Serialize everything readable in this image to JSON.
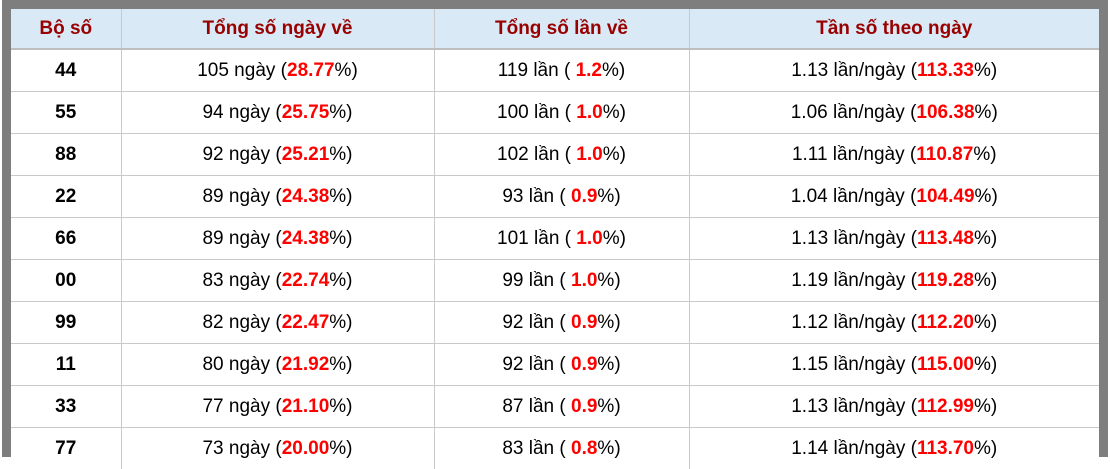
{
  "theme": {
    "frame_color": "#7e7e7e",
    "header_bg": "#d9eaf6",
    "header_text_color": "#990000",
    "body_text_color": "#000000",
    "highlight_color": "#ff0000",
    "divider_color": "#c9c9c9"
  },
  "table": {
    "headers": [
      "Bộ số",
      "Tổng số ngày về",
      "Tổng số lần về",
      "Tần số theo ngày"
    ],
    "rows": [
      {
        "pair": "44",
        "days_pre": "105 ngày (",
        "days_hl": "28.77",
        "days_post": "%)",
        "times_pre": "119 lần ( ",
        "times_hl": "1.2",
        "times_post": "%)",
        "freq_pre": "1.13 lần/ngày (",
        "freq_hl": "113.33",
        "freq_post": "%)"
      },
      {
        "pair": "55",
        "days_pre": "94 ngày (",
        "days_hl": "25.75",
        "days_post": "%)",
        "times_pre": "100 lần ( ",
        "times_hl": "1.0",
        "times_post": "%)",
        "freq_pre": "1.06 lần/ngày (",
        "freq_hl": "106.38",
        "freq_post": "%)"
      },
      {
        "pair": "88",
        "days_pre": "92 ngày (",
        "days_hl": "25.21",
        "days_post": "%)",
        "times_pre": "102 lần ( ",
        "times_hl": "1.0",
        "times_post": "%)",
        "freq_pre": "1.11 lần/ngày (",
        "freq_hl": "110.87",
        "freq_post": "%)"
      },
      {
        "pair": "22",
        "days_pre": "89 ngày (",
        "days_hl": "24.38",
        "days_post": "%)",
        "times_pre": "93 lần ( ",
        "times_hl": "0.9",
        "times_post": "%)",
        "freq_pre": "1.04 lần/ngày (",
        "freq_hl": "104.49",
        "freq_post": "%)"
      },
      {
        "pair": "66",
        "days_pre": "89 ngày (",
        "days_hl": "24.38",
        "days_post": "%)",
        "times_pre": "101 lần ( ",
        "times_hl": "1.0",
        "times_post": "%)",
        "freq_pre": "1.13 lần/ngày (",
        "freq_hl": "113.48",
        "freq_post": "%)"
      },
      {
        "pair": "00",
        "days_pre": "83 ngày (",
        "days_hl": "22.74",
        "days_post": "%)",
        "times_pre": "99 lần ( ",
        "times_hl": "1.0",
        "times_post": "%)",
        "freq_pre": "1.19 lần/ngày (",
        "freq_hl": "119.28",
        "freq_post": "%)"
      },
      {
        "pair": "99",
        "days_pre": "82 ngày (",
        "days_hl": "22.47",
        "days_post": "%)",
        "times_pre": "92 lần ( ",
        "times_hl": "0.9",
        "times_post": "%)",
        "freq_pre": "1.12 lần/ngày (",
        "freq_hl": "112.20",
        "freq_post": "%)"
      },
      {
        "pair": "11",
        "days_pre": "80 ngày (",
        "days_hl": "21.92",
        "days_post": "%)",
        "times_pre": "92 lần ( ",
        "times_hl": "0.9",
        "times_post": "%)",
        "freq_pre": "1.15 lần/ngày (",
        "freq_hl": "115.00",
        "freq_post": "%)"
      },
      {
        "pair": "33",
        "days_pre": "77 ngày (",
        "days_hl": "21.10",
        "days_post": "%)",
        "times_pre": "87 lần ( ",
        "times_hl": "0.9",
        "times_post": "%)",
        "freq_pre": "1.13 lần/ngày (",
        "freq_hl": "112.99",
        "freq_post": "%)"
      },
      {
        "pair": "77",
        "days_pre": "73 ngày (",
        "days_hl": "20.00",
        "days_post": "%)",
        "times_pre": "83 lần ( ",
        "times_hl": "0.8",
        "times_post": "%)",
        "freq_pre": "1.14 lần/ngày (",
        "freq_hl": "113.70",
        "freq_post": "%)"
      }
    ]
  }
}
